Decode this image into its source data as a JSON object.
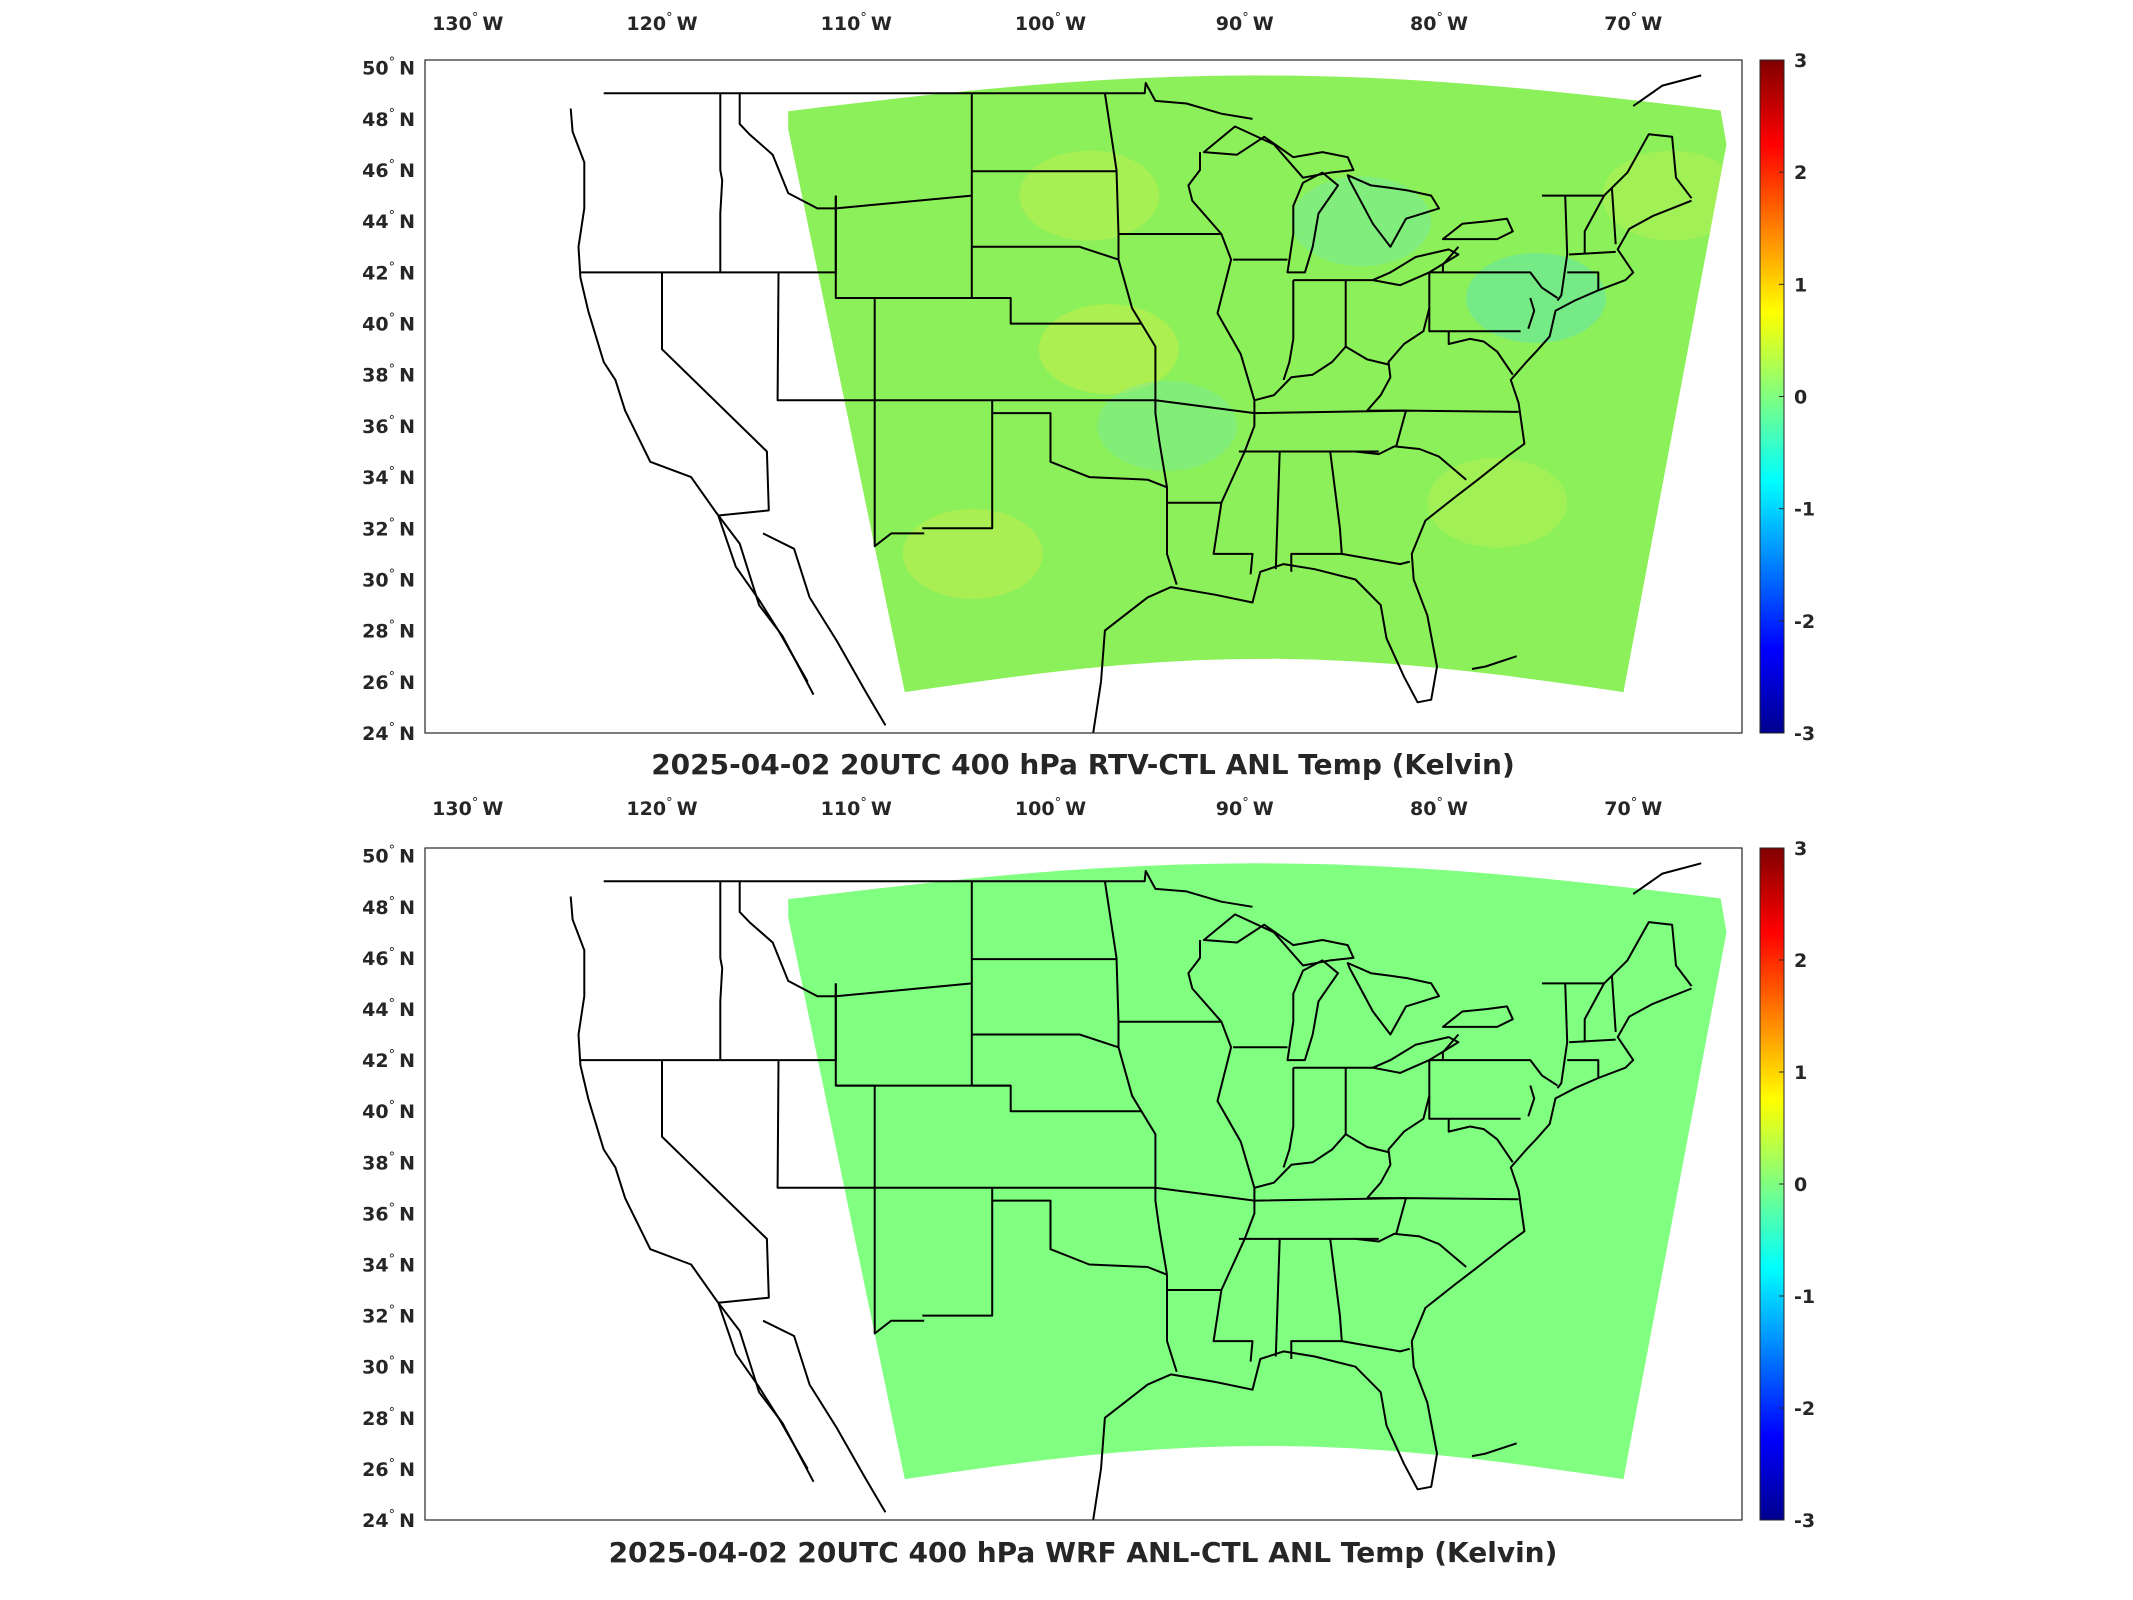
{
  "panels": [
    {
      "id": "rtv",
      "title": "2025-04-02 20UTC 400 hPa RTV-CTL ANL Temp (Kelvin)",
      "field_style": "noisy",
      "base_color": "#8cf05a"
    },
    {
      "id": "wrf",
      "title": "2025-04-02 20UTC 400 hPa WRF ANL-CTL ANL Temp (Kelvin)",
      "field_style": "uniform",
      "base_color": "#80ff80"
    }
  ],
  "map": {
    "lon_ticks": [
      {
        "value": -130,
        "label": "130",
        "hemi": "W"
      },
      {
        "value": -120,
        "label": "120",
        "hemi": "W"
      },
      {
        "value": -110,
        "label": "110",
        "hemi": "W"
      },
      {
        "value": -100,
        "label": "100",
        "hemi": "W"
      },
      {
        "value": -90,
        "label": "90",
        "hemi": "W"
      },
      {
        "value": -80,
        "label": "80",
        "hemi": "W"
      },
      {
        "value": -70,
        "label": "70",
        "hemi": "W"
      }
    ],
    "lat_ticks": [
      {
        "value": 50,
        "label": "50",
        "hemi": "N"
      },
      {
        "value": 48,
        "label": "48",
        "hemi": "N"
      },
      {
        "value": 46,
        "label": "46",
        "hemi": "N"
      },
      {
        "value": 44,
        "label": "44",
        "hemi": "N"
      },
      {
        "value": 42,
        "label": "42",
        "hemi": "N"
      },
      {
        "value": 40,
        "label": "40",
        "hemi": "N"
      },
      {
        "value": 38,
        "label": "38",
        "hemi": "N"
      },
      {
        "value": 36,
        "label": "36",
        "hemi": "N"
      },
      {
        "value": 34,
        "label": "34",
        "hemi": "N"
      },
      {
        "value": 32,
        "label": "32",
        "hemi": "N"
      },
      {
        "value": 30,
        "label": "30",
        "hemi": "N"
      },
      {
        "value": 28,
        "label": "28",
        "hemi": "N"
      },
      {
        "value": 26,
        "label": "26",
        "hemi": "N"
      },
      {
        "value": 24,
        "label": "24",
        "hemi": "N"
      }
    ],
    "degree_symbol": "°"
  },
  "colorbar": {
    "min": -3,
    "max": 3,
    "colormap": "jet",
    "ticks": [
      "3",
      "2",
      "1",
      "0",
      "-1",
      "-2",
      "-3"
    ]
  }
}
